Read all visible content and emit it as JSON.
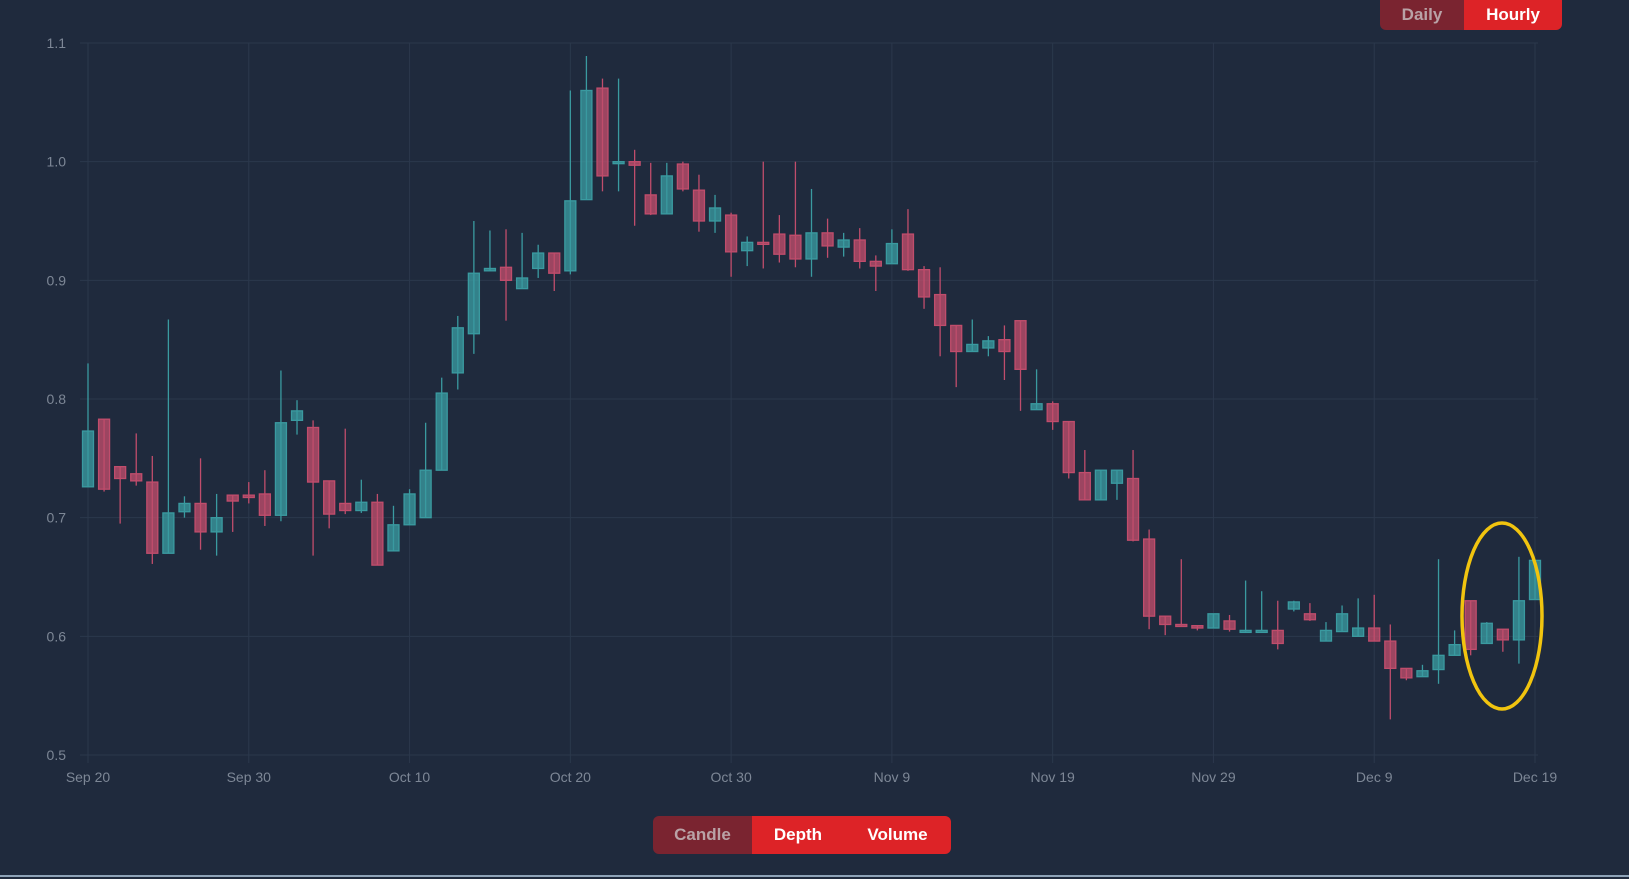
{
  "interval_buttons": {
    "daily": "Daily",
    "hourly": "Hourly",
    "active": "hourly"
  },
  "view_buttons": {
    "candle": "Candle",
    "depth": "Depth",
    "volume": "Volume",
    "active": "candle"
  },
  "colors": {
    "up": "#3a9aa0",
    "down": "#c04d6c",
    "grid": "#2b384c",
    "background": "#1f2a3d",
    "highlight": "#f1c40f",
    "tick_text": "#7d8796"
  },
  "chart_data": {
    "type": "candlestick",
    "title": "",
    "xlabel": "",
    "ylabel": "",
    "x_ticks": [
      "Sep 20",
      "Sep 30",
      "Oct 10",
      "Oct 20",
      "Oct 30",
      "Nov 9",
      "Nov 19",
      "Nov 29",
      "Dec 9",
      "Dec 19"
    ],
    "y_ticks": [
      "0.5",
      "0.6",
      "0.7",
      "0.8",
      "0.9",
      "1.0",
      "1.1"
    ],
    "ylim": [
      0.5,
      1.1
    ],
    "xlim": [
      "Sep 20",
      "Dec 19"
    ],
    "grid": true,
    "annotation": {
      "shape": "ellipse",
      "color": "highlight",
      "target": "last three candles (Dec 17 - Dec 19)"
    },
    "candles": [
      {
        "date": "Sep 20",
        "open": 0.726,
        "high": 0.83,
        "low": 0.726,
        "close": 0.773
      },
      {
        "date": "Sep 21",
        "open": 0.783,
        "high": 0.783,
        "low": 0.722,
        "close": 0.724
      },
      {
        "date": "Sep 22",
        "open": 0.743,
        "high": 0.743,
        "low": 0.695,
        "close": 0.733
      },
      {
        "date": "Sep 23",
        "open": 0.737,
        "high": 0.771,
        "low": 0.727,
        "close": 0.731
      },
      {
        "date": "Sep 24",
        "open": 0.73,
        "high": 0.752,
        "low": 0.661,
        "close": 0.67
      },
      {
        "date": "Sep 25",
        "open": 0.67,
        "high": 0.867,
        "low": 0.67,
        "close": 0.704
      },
      {
        "date": "Sep 26",
        "open": 0.705,
        "high": 0.718,
        "low": 0.7,
        "close": 0.712
      },
      {
        "date": "Sep 27",
        "open": 0.712,
        "high": 0.75,
        "low": 0.673,
        "close": 0.688
      },
      {
        "date": "Sep 28",
        "open": 0.688,
        "high": 0.72,
        "low": 0.668,
        "close": 0.7
      },
      {
        "date": "Sep 29",
        "open": 0.719,
        "high": 0.719,
        "low": 0.688,
        "close": 0.714
      },
      {
        "date": "Sep 30",
        "open": 0.719,
        "high": 0.73,
        "low": 0.712,
        "close": 0.717
      },
      {
        "date": "Oct 1",
        "open": 0.72,
        "high": 0.74,
        "low": 0.693,
        "close": 0.702
      },
      {
        "date": "Oct 2",
        "open": 0.702,
        "high": 0.824,
        "low": 0.697,
        "close": 0.78
      },
      {
        "date": "Oct 3",
        "open": 0.782,
        "high": 0.799,
        "low": 0.77,
        "close": 0.79
      },
      {
        "date": "Oct 4",
        "open": 0.776,
        "high": 0.782,
        "low": 0.668,
        "close": 0.73
      },
      {
        "date": "Oct 5",
        "open": 0.731,
        "high": 0.731,
        "low": 0.691,
        "close": 0.703
      },
      {
        "date": "Oct 6",
        "open": 0.712,
        "high": 0.775,
        "low": 0.703,
        "close": 0.706
      },
      {
        "date": "Oct 7",
        "open": 0.706,
        "high": 0.732,
        "low": 0.704,
        "close": 0.713
      },
      {
        "date": "Oct 8",
        "open": 0.713,
        "high": 0.72,
        "low": 0.66,
        "close": 0.66
      },
      {
        "date": "Oct 9",
        "open": 0.672,
        "high": 0.71,
        "low": 0.672,
        "close": 0.694
      },
      {
        "date": "Oct 10",
        "open": 0.694,
        "high": 0.724,
        "low": 0.694,
        "close": 0.72
      },
      {
        "date": "Oct 11",
        "open": 0.7,
        "high": 0.78,
        "low": 0.7,
        "close": 0.74
      },
      {
        "date": "Oct 12",
        "open": 0.74,
        "high": 0.818,
        "low": 0.74,
        "close": 0.805
      },
      {
        "date": "Oct 13",
        "open": 0.822,
        "high": 0.87,
        "low": 0.808,
        "close": 0.86
      },
      {
        "date": "Oct 14",
        "open": 0.855,
        "high": 0.95,
        "low": 0.838,
        "close": 0.906
      },
      {
        "date": "Oct 15",
        "open": 0.908,
        "high": 0.942,
        "low": 0.908,
        "close": 0.91
      },
      {
        "date": "Oct 16",
        "open": 0.911,
        "high": 0.943,
        "low": 0.866,
        "close": 0.9
      },
      {
        "date": "Oct 17",
        "open": 0.893,
        "high": 0.94,
        "low": 0.893,
        "close": 0.902
      },
      {
        "date": "Oct 18",
        "open": 0.91,
        "high": 0.93,
        "low": 0.902,
        "close": 0.923
      },
      {
        "date": "Oct 19",
        "open": 0.923,
        "high": 0.923,
        "low": 0.891,
        "close": 0.906
      },
      {
        "date": "Oct 20",
        "open": 0.908,
        "high": 1.06,
        "low": 0.905,
        "close": 0.967
      },
      {
        "date": "Oct 21",
        "open": 0.968,
        "high": 1.089,
        "low": 0.968,
        "close": 1.06
      },
      {
        "date": "Oct 22",
        "open": 1.062,
        "high": 1.07,
        "low": 0.975,
        "close": 0.988
      },
      {
        "date": "Oct 23",
        "open": 1.0,
        "high": 1.07,
        "low": 0.975,
        "close": 1.0
      },
      {
        "date": "Oct 24",
        "open": 1.0,
        "high": 1.01,
        "low": 0.946,
        "close": 0.997
      },
      {
        "date": "Oct 25",
        "open": 0.972,
        "high": 0.999,
        "low": 0.955,
        "close": 0.956
      },
      {
        "date": "Oct 26",
        "open": 0.956,
        "high": 0.999,
        "low": 0.956,
        "close": 0.988
      },
      {
        "date": "Oct 27",
        "open": 0.998,
        "high": 1.0,
        "low": 0.975,
        "close": 0.977
      },
      {
        "date": "Oct 28",
        "open": 0.976,
        "high": 0.989,
        "low": 0.941,
        "close": 0.95
      },
      {
        "date": "Oct 29",
        "open": 0.95,
        "high": 0.972,
        "low": 0.94,
        "close": 0.961
      },
      {
        "date": "Oct 30",
        "open": 0.955,
        "high": 0.957,
        "low": 0.903,
        "close": 0.924
      },
      {
        "date": "Oct 31",
        "open": 0.925,
        "high": 0.937,
        "low": 0.912,
        "close": 0.932
      },
      {
        "date": "Nov 1",
        "open": 0.932,
        "high": 1.0,
        "low": 0.91,
        "close": 0.931
      },
      {
        "date": "Nov 2",
        "open": 0.939,
        "high": 0.955,
        "low": 0.915,
        "close": 0.922
      },
      {
        "date": "Nov 3",
        "open": 0.938,
        "high": 1.0,
        "low": 0.911,
        "close": 0.918
      },
      {
        "date": "Nov 4",
        "open": 0.918,
        "high": 0.977,
        "low": 0.903,
        "close": 0.94
      },
      {
        "date": "Nov 5",
        "open": 0.94,
        "high": 0.952,
        "low": 0.919,
        "close": 0.929
      },
      {
        "date": "Nov 6",
        "open": 0.928,
        "high": 0.94,
        "low": 0.92,
        "close": 0.934
      },
      {
        "date": "Nov 7",
        "open": 0.934,
        "high": 0.944,
        "low": 0.91,
        "close": 0.916
      },
      {
        "date": "Nov 8",
        "open": 0.916,
        "high": 0.921,
        "low": 0.891,
        "close": 0.912
      },
      {
        "date": "Nov 9",
        "open": 0.914,
        "high": 0.943,
        "low": 0.914,
        "close": 0.931
      },
      {
        "date": "Nov 10",
        "open": 0.939,
        "high": 0.96,
        "low": 0.908,
        "close": 0.909
      },
      {
        "date": "Nov 11",
        "open": 0.909,
        "high": 0.912,
        "low": 0.876,
        "close": 0.886
      },
      {
        "date": "Nov 12",
        "open": 0.888,
        "high": 0.911,
        "low": 0.836,
        "close": 0.862
      },
      {
        "date": "Nov 13",
        "open": 0.862,
        "high": 0.862,
        "low": 0.81,
        "close": 0.84
      },
      {
        "date": "Nov 14",
        "open": 0.84,
        "high": 0.867,
        "low": 0.84,
        "close": 0.846
      },
      {
        "date": "Nov 15",
        "open": 0.843,
        "high": 0.853,
        "low": 0.836,
        "close": 0.849
      },
      {
        "date": "Nov 16",
        "open": 0.85,
        "high": 0.862,
        "low": 0.816,
        "close": 0.84
      },
      {
        "date": "Nov 17",
        "open": 0.866,
        "high": 0.866,
        "low": 0.79,
        "close": 0.825
      },
      {
        "date": "Nov 18",
        "open": 0.791,
        "high": 0.825,
        "low": 0.791,
        "close": 0.796
      },
      {
        "date": "Nov 19",
        "open": 0.796,
        "high": 0.798,
        "low": 0.774,
        "close": 0.781
      },
      {
        "date": "Nov 20",
        "open": 0.781,
        "high": 0.781,
        "low": 0.733,
        "close": 0.738
      },
      {
        "date": "Nov 21",
        "open": 0.738,
        "high": 0.757,
        "low": 0.715,
        "close": 0.715
      },
      {
        "date": "Nov 22",
        "open": 0.715,
        "high": 0.74,
        "low": 0.715,
        "close": 0.74
      },
      {
        "date": "Nov 23",
        "open": 0.729,
        "high": 0.74,
        "low": 0.715,
        "close": 0.74
      },
      {
        "date": "Nov 24",
        "open": 0.733,
        "high": 0.757,
        "low": 0.68,
        "close": 0.681
      },
      {
        "date": "Nov 25",
        "open": 0.682,
        "high": 0.69,
        "low": 0.606,
        "close": 0.617
      },
      {
        "date": "Nov 26",
        "open": 0.617,
        "high": 0.617,
        "low": 0.601,
        "close": 0.61
      },
      {
        "date": "Nov 27",
        "open": 0.61,
        "high": 0.665,
        "low": 0.609,
        "close": 0.609
      },
      {
        "date": "Nov 28",
        "open": 0.609,
        "high": 0.609,
        "low": 0.605,
        "close": 0.607
      },
      {
        "date": "Nov 29",
        "open": 0.607,
        "high": 0.619,
        "low": 0.607,
        "close": 0.619
      },
      {
        "date": "Nov 30",
        "open": 0.613,
        "high": 0.618,
        "low": 0.604,
        "close": 0.606
      },
      {
        "date": "Dec 1",
        "open": 0.605,
        "high": 0.647,
        "low": 0.604,
        "close": 0.605
      },
      {
        "date": "Dec 2",
        "open": 0.605,
        "high": 0.638,
        "low": 0.605,
        "close": 0.605
      },
      {
        "date": "Dec 3",
        "open": 0.605,
        "high": 0.63,
        "low": 0.589,
        "close": 0.594
      },
      {
        "date": "Dec 4",
        "open": 0.623,
        "high": 0.63,
        "low": 0.621,
        "close": 0.629
      },
      {
        "date": "Dec 5",
        "open": 0.619,
        "high": 0.628,
        "low": 0.613,
        "close": 0.614
      },
      {
        "date": "Dec 6",
        "open": 0.596,
        "high": 0.612,
        "low": 0.596,
        "close": 0.605
      },
      {
        "date": "Dec 7",
        "open": 0.604,
        "high": 0.626,
        "low": 0.604,
        "close": 0.619
      },
      {
        "date": "Dec 8",
        "open": 0.6,
        "high": 0.632,
        "low": 0.6,
        "close": 0.607
      },
      {
        "date": "Dec 9",
        "open": 0.607,
        "high": 0.635,
        "low": 0.596,
        "close": 0.596
      },
      {
        "date": "Dec 10",
        "open": 0.596,
        "high": 0.61,
        "low": 0.53,
        "close": 0.573
      },
      {
        "date": "Dec 11",
        "open": 0.573,
        "high": 0.573,
        "low": 0.563,
        "close": 0.565
      },
      {
        "date": "Dec 12",
        "open": 0.566,
        "high": 0.576,
        "low": 0.566,
        "close": 0.571
      },
      {
        "date": "Dec 13",
        "open": 0.572,
        "high": 0.665,
        "low": 0.56,
        "close": 0.584
      },
      {
        "date": "Dec 14",
        "open": 0.584,
        "high": 0.605,
        "low": 0.584,
        "close": 0.593
      },
      {
        "date": "Dec 15",
        "open": 0.63,
        "high": 0.63,
        "low": 0.584,
        "close": 0.589
      },
      {
        "date": "Dec 16",
        "open": 0.594,
        "high": 0.612,
        "low": 0.594,
        "close": 0.611
      },
      {
        "date": "Dec 17",
        "open": 0.606,
        "high": 0.606,
        "low": 0.587,
        "close": 0.597
      },
      {
        "date": "Dec 18",
        "open": 0.597,
        "high": 0.667,
        "low": 0.577,
        "close": 0.63
      },
      {
        "date": "Dec 19",
        "open": 0.631,
        "high": 0.664,
        "low": 0.631,
        "close": 0.664
      }
    ]
  }
}
